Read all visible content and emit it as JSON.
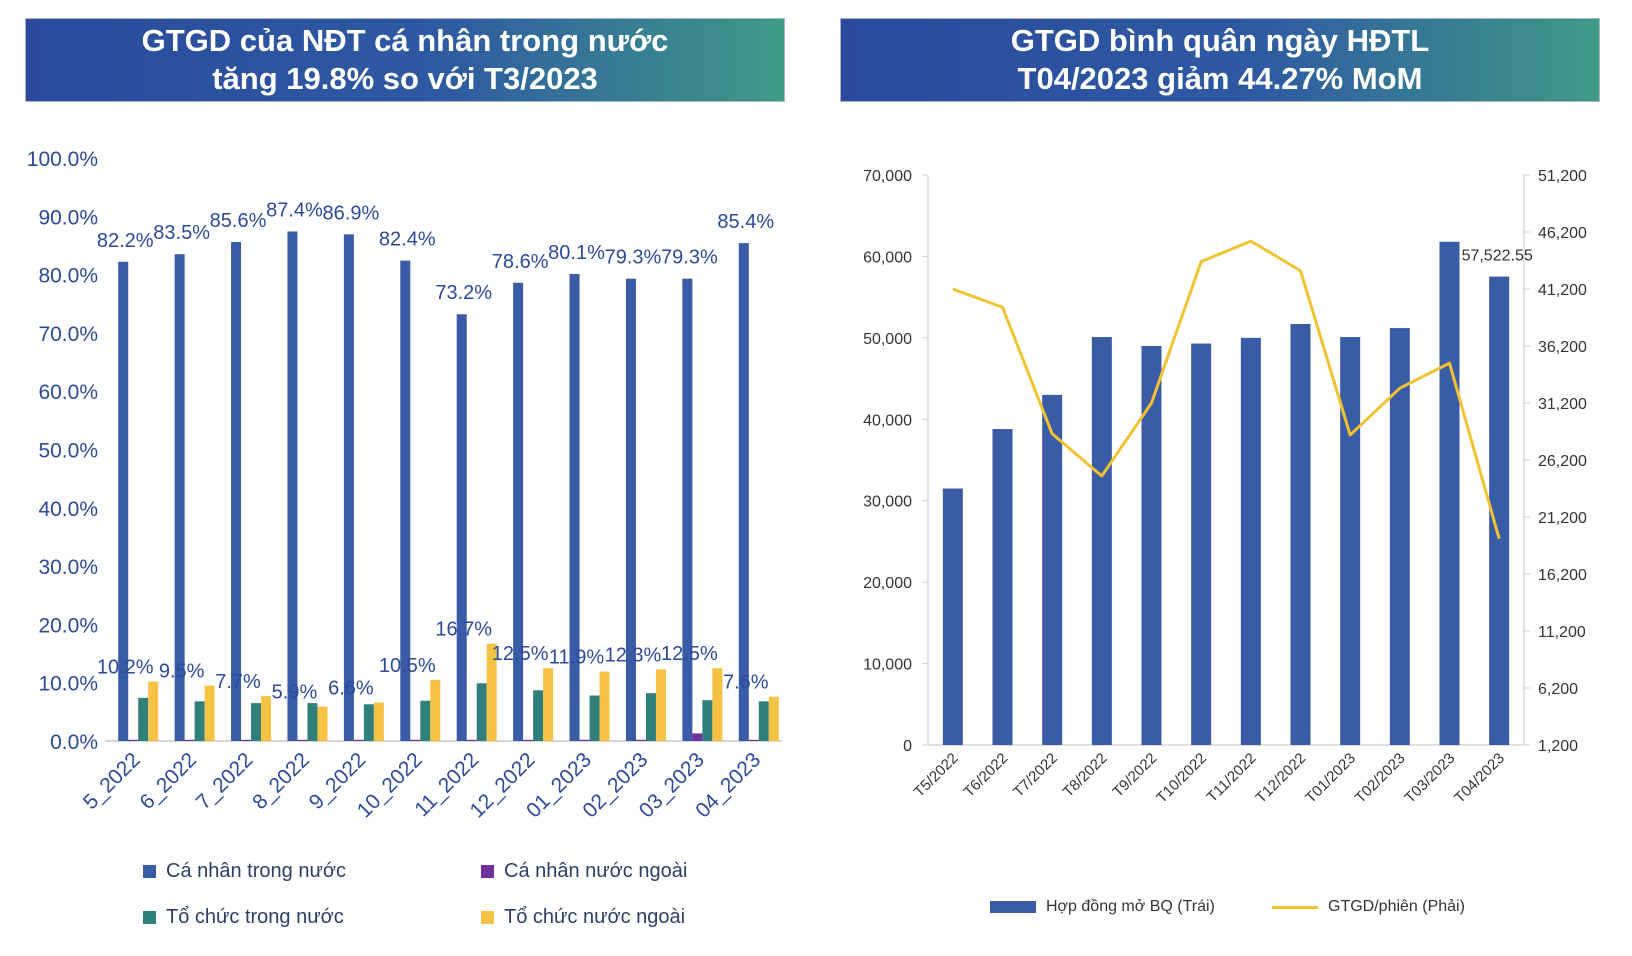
{
  "banners": {
    "left": {
      "line1": "GTGD của NĐT cá nhân trong nước",
      "line2": "tăng 19.8% so với T3/2023"
    },
    "right": {
      "line1": "GTGD bình quân ngày HĐTL",
      "line2": "T04/2023 giảm 44.27% MoM"
    }
  },
  "colors": {
    "blue": "#3a5ba6",
    "purple": "#7030a0",
    "teal": "#2f7f7a",
    "yellow": "#f6c244",
    "line": "#f2c230",
    "axis_text": "#2c4a9a"
  },
  "chart_data": [
    {
      "type": "bar",
      "categories": [
        "5_2022",
        "6_2022",
        "7_2022",
        "8_2022",
        "9_2022",
        "10_2022",
        "11_2022",
        "12_2022",
        "01_2023",
        "02_2023",
        "03_2023",
        "04_2023"
      ],
      "ylim": [
        0,
        100
      ],
      "yticks": [
        "0.0%",
        "10.0%",
        "20.0%",
        "30.0%",
        "40.0%",
        "50.0%",
        "60.0%",
        "70.0%",
        "80.0%",
        "90.0%",
        "100.0%"
      ],
      "series": [
        {
          "name": "Cá nhân trong nước",
          "values": [
            82.2,
            83.5,
            85.6,
            87.4,
            86.9,
            82.4,
            73.2,
            78.6,
            80.1,
            79.3,
            79.3,
            85.4
          ],
          "labels": [
            "82.2%",
            "83.5%",
            "85.6%",
            "87.4%",
            "86.9%",
            "82.4%",
            "73.2%",
            "78.6%",
            "80.1%",
            "79.3%",
            "79.3%",
            "85.4%"
          ]
        },
        {
          "name": "Cá nhân nước ngoài",
          "values": [
            0.2,
            0.2,
            0.2,
            0.2,
            0.2,
            0.2,
            0.2,
            0.2,
            0.2,
            0.2,
            1.3,
            0.2
          ]
        },
        {
          "name": "Tổ chức trong nước",
          "values": [
            7.4,
            6.8,
            6.5,
            6.5,
            6.3,
            6.9,
            9.9,
            8.7,
            7.8,
            8.2,
            7.0,
            6.8
          ]
        },
        {
          "name": "Tổ chức nước ngoài",
          "values": [
            10.2,
            9.5,
            7.7,
            5.9,
            6.6,
            10.5,
            16.7,
            12.5,
            11.9,
            12.3,
            12.5,
            7.6
          ],
          "labels": [
            "10.2%",
            "9.5%",
            "7.7%",
            "5.9%",
            "6.6%",
            "10.5%",
            "16.7%",
            "12.5%",
            "11.9%",
            "12.3%",
            "12.5%",
            "7.6%"
          ]
        }
      ],
      "legend": [
        "Cá nhân trong nước",
        "Cá nhân nước ngoài",
        "Tổ chức trong nước",
        "Tổ chức nước ngoài"
      ]
    },
    {
      "type": "bar",
      "categories": [
        "T5/2022",
        "T6/2022",
        "T7/2022",
        "T8/2022",
        "T9/2022",
        "T10/2022",
        "T11/2022",
        "T12/2022",
        "T01/2023",
        "T02/2023",
        "T03/2023",
        "T04/2023"
      ],
      "ylim": [
        0,
        70000
      ],
      "yticks": [
        "0",
        "10,000",
        "20,000",
        "30,000",
        "40,000",
        "50,000",
        "60,000",
        "70,000"
      ],
      "y2lim": [
        1200,
        51200
      ],
      "y2ticks": [
        "1,200",
        "6,200",
        "11,200",
        "16,200",
        "21,200",
        "26,200",
        "31,200",
        "36,200",
        "41,200",
        "46,200",
        "51,200"
      ],
      "series": [
        {
          "name": "Hợp đồng mở BQ (Trái)",
          "type": "bar",
          "axis": "left",
          "values": [
            31500,
            38800,
            43000,
            50100,
            49000,
            49300,
            50000,
            51700,
            50100,
            51200,
            61800,
            57522.55
          ]
        },
        {
          "name": "GTGD/phiên (Phải)",
          "type": "line",
          "axis": "right",
          "values": [
            41200,
            39600,
            28500,
            24800,
            31200,
            43600,
            45400,
            42800,
            28400,
            32500,
            34700,
            19300
          ]
        }
      ],
      "annotation": "57,522.55",
      "legend": [
        "Hợp đồng mở BQ (Trái)",
        "GTGD/phiên (Phải)"
      ]
    }
  ]
}
